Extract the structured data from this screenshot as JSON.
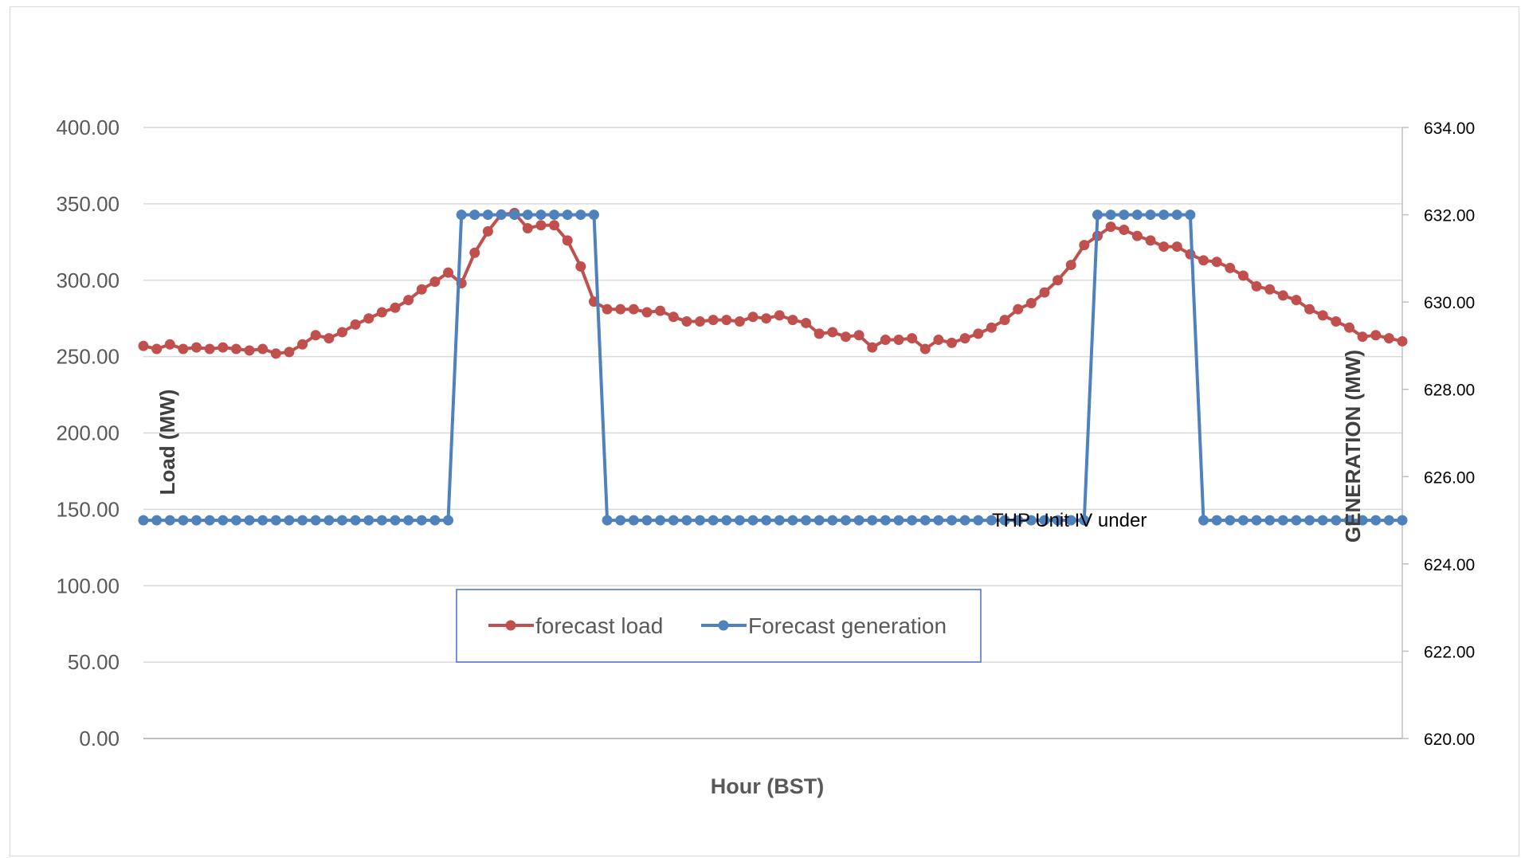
{
  "chart_data": {
    "type": "line",
    "title": "",
    "xlabel": "Hour (BST)",
    "ylabel_left": "Load (MW)",
    "ylabel_right": "GENERATION (MW)",
    "ylim_left": [
      0,
      400
    ],
    "ylim_right": [
      620,
      634
    ],
    "left_ticks": [
      "0.00",
      "50.00",
      "100.00",
      "150.00",
      "200.00",
      "250.00",
      "300.00",
      "350.00",
      "400.00"
    ],
    "right_ticks": [
      "620.00",
      "622.00",
      "624.00",
      "626.00",
      "628.00",
      "630.00",
      "632.00",
      "634.00"
    ],
    "grid": "horizontal",
    "legend_position": "bottom-center",
    "annotation": "THP Unit IV under",
    "series": [
      {
        "name": "forecast load",
        "axis": "left",
        "color": "#c0504d",
        "values": [
          257,
          255,
          258,
          255,
          256,
          255,
          256,
          255,
          254,
          255,
          252,
          253,
          258,
          264,
          262,
          266,
          271,
          275,
          279,
          282,
          287,
          294,
          299,
          305,
          298,
          318,
          332,
          343,
          344,
          334,
          336,
          336,
          326,
          309,
          286,
          281,
          281,
          281,
          279,
          280,
          276,
          273,
          273,
          274,
          274,
          273,
          276,
          275,
          277,
          274,
          272,
          265,
          266,
          263,
          264,
          256,
          261,
          261,
          262,
          255,
          261,
          259,
          262,
          265,
          269,
          274,
          281,
          285,
          292,
          300,
          310,
          323,
          329,
          335,
          333,
          329,
          326,
          322,
          322,
          317,
          313,
          312,
          308,
          303,
          296,
          294,
          290,
          287,
          281,
          277,
          273,
          269,
          263,
          264,
          262,
          260
        ]
      },
      {
        "name": "Forecast generation",
        "axis": "right",
        "color": "#4f81bd",
        "values": [
          625,
          625,
          625,
          625,
          625,
          625,
          625,
          625,
          625,
          625,
          625,
          625,
          625,
          625,
          625,
          625,
          625,
          625,
          625,
          625,
          625,
          625,
          625,
          625,
          632,
          632,
          632,
          632,
          632,
          632,
          632,
          632,
          632,
          632,
          632,
          625,
          625,
          625,
          625,
          625,
          625,
          625,
          625,
          625,
          625,
          625,
          625,
          625,
          625,
          625,
          625,
          625,
          625,
          625,
          625,
          625,
          625,
          625,
          625,
          625,
          625,
          625,
          625,
          625,
          625,
          625,
          625,
          625,
          625,
          625,
          625,
          625,
          632,
          632,
          632,
          632,
          632,
          632,
          632,
          632,
          625,
          625,
          625,
          625,
          625,
          625,
          625,
          625,
          625,
          625,
          625,
          625,
          625,
          625,
          625,
          625
        ]
      }
    ]
  }
}
